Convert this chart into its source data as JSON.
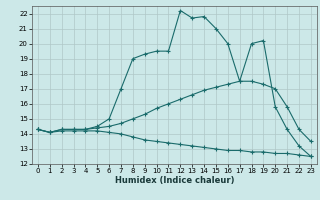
{
  "xlabel": "Humidex (Indice chaleur)",
  "bg_color": "#cce8e8",
  "grid_color": "#b0c8c8",
  "line_color": "#1a6b6b",
  "xlim": [
    -0.5,
    23.5
  ],
  "ylim": [
    12,
    22.5
  ],
  "yticks": [
    12,
    13,
    14,
    15,
    16,
    17,
    18,
    19,
    20,
    21,
    22
  ],
  "xticks": [
    0,
    1,
    2,
    3,
    4,
    5,
    6,
    7,
    8,
    9,
    10,
    11,
    12,
    13,
    14,
    15,
    16,
    17,
    18,
    19,
    20,
    21,
    22,
    23
  ],
  "line1_x": [
    0,
    1,
    2,
    3,
    4,
    5,
    6,
    7,
    8,
    9,
    10,
    11,
    12,
    13,
    14,
    15,
    16,
    17,
    18,
    19,
    20,
    21,
    22,
    23
  ],
  "line1_y": [
    14.3,
    14.1,
    14.3,
    14.3,
    14.3,
    14.5,
    15.0,
    17.0,
    19.0,
    19.3,
    19.5,
    19.5,
    22.2,
    21.7,
    21.8,
    21.0,
    20.0,
    17.5,
    20.0,
    20.2,
    15.8,
    14.3,
    13.2,
    12.5
  ],
  "line2_x": [
    0,
    1,
    2,
    3,
    4,
    5,
    6,
    7,
    8,
    9,
    10,
    11,
    12,
    13,
    14,
    15,
    16,
    17,
    18,
    19,
    20,
    21,
    22,
    23
  ],
  "line2_y": [
    14.3,
    14.1,
    14.3,
    14.3,
    14.3,
    14.4,
    14.5,
    14.7,
    15.0,
    15.3,
    15.7,
    16.0,
    16.3,
    16.6,
    16.9,
    17.1,
    17.3,
    17.5,
    17.5,
    17.3,
    17.0,
    15.8,
    14.3,
    13.5
  ],
  "line3_x": [
    0,
    1,
    2,
    3,
    4,
    5,
    6,
    7,
    8,
    9,
    10,
    11,
    12,
    13,
    14,
    15,
    16,
    17,
    18,
    19,
    20,
    21,
    22,
    23
  ],
  "line3_y": [
    14.3,
    14.1,
    14.2,
    14.2,
    14.2,
    14.2,
    14.1,
    14.0,
    13.8,
    13.6,
    13.5,
    13.4,
    13.3,
    13.2,
    13.1,
    13.0,
    12.9,
    12.9,
    12.8,
    12.8,
    12.7,
    12.7,
    12.6,
    12.5
  ]
}
